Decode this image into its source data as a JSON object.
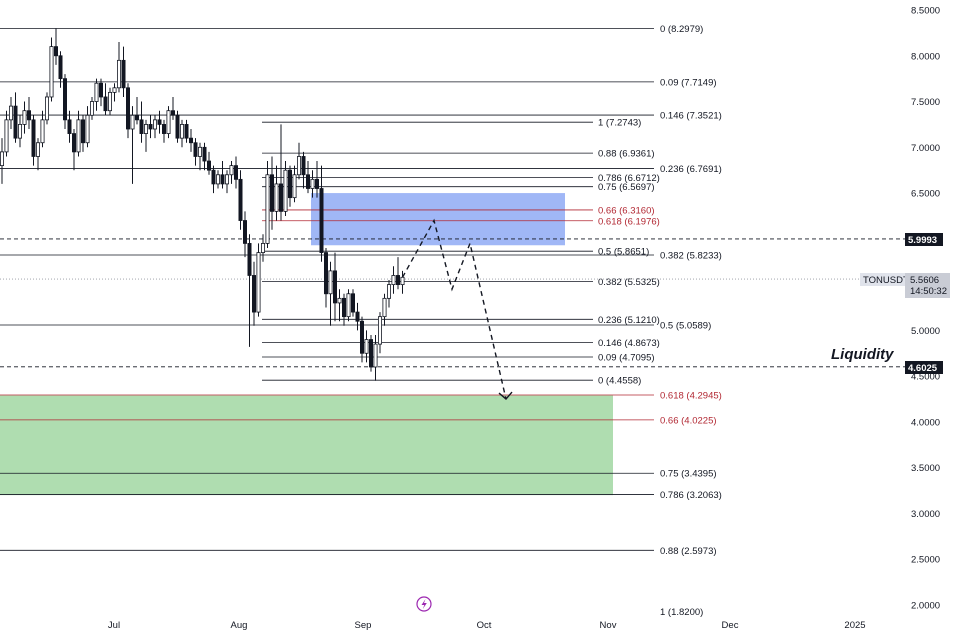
{
  "symbol_tag": {
    "label": "TONUSDT",
    "price": "5.5606",
    "countdown": "14:50:32"
  },
  "level_tags": {
    "top": "5.9993",
    "liquidity": "4.6025"
  },
  "liquidity_text": "Liquidity",
  "colors": {
    "up": "#26a69a",
    "down": "#131722",
    "candle": "#131722",
    "supply_zone": "#8faaf5",
    "demand_zone": "#a6d9a7",
    "fib_red": "#b22833",
    "tag_bg": "#131722"
  },
  "icons": {
    "bottom_center": "lightning-icon"
  },
  "chart_data": {
    "type": "candlestick",
    "y_axis": {
      "range": [
        2.0,
        8.5
      ],
      "ticks": [
        "8.5000",
        "8.0000",
        "7.5000",
        "7.0000",
        "6.5000",
        "6.0000",
        "5.5000",
        "5.0000",
        "4.5000",
        "4.0000",
        "3.5000",
        "3.0000",
        "2.5000",
        "2.0000"
      ]
    },
    "x_axis": {
      "ticks": [
        "Jul",
        "Aug",
        "Sep",
        "Oct",
        "Nov",
        "Dec",
        "2025"
      ]
    },
    "fib_left": [
      {
        "label": "0 (8.2979)",
        "price": 8.2979
      },
      {
        "label": "0.09 (7.7149)",
        "price": 7.7149
      },
      {
        "label": "0.146 (7.3521)",
        "price": 7.3521
      },
      {
        "label": "0.236 (6.7691)",
        "price": 6.7691
      },
      {
        "label": "0.382 (5.8233)",
        "price": 5.8233
      },
      {
        "label": "0.5 (5.0589)",
        "price": 5.0589
      },
      {
        "label": "0.618 (4.2945)",
        "price": 4.2945,
        "red": true
      },
      {
        "label": "0.66 (4.0225)",
        "price": 4.0225,
        "red": true
      },
      {
        "label": "0.75 (3.4395)",
        "price": 3.4395
      },
      {
        "label": "0.786 (3.2063)",
        "price": 3.2063
      },
      {
        "label": "0.88 (2.5973)",
        "price": 2.5973
      },
      {
        "label": "1 (1.8200)",
        "price": 1.82
      }
    ],
    "fib_right": [
      {
        "label": "1 (7.2743)",
        "price": 7.2743
      },
      {
        "label": "0.88 (6.9361)",
        "price": 6.9361
      },
      {
        "label": "0.786 (6.6712)",
        "price": 6.6712
      },
      {
        "label": "0.75 (6.5697)",
        "price": 6.5697
      },
      {
        "label": "0.66 (6.3160)",
        "price": 6.316,
        "red": true
      },
      {
        "label": "0.618 (6.1976)",
        "price": 6.1976,
        "red": true
      },
      {
        "label": "0.5 (5.8651)",
        "price": 5.8651
      },
      {
        "label": "0.382 (5.5325)",
        "price": 5.5325
      },
      {
        "label": "0.236 (5.1210)",
        "price": 5.121
      },
      {
        "label": "0.146 (4.8673)",
        "price": 4.8673
      },
      {
        "label": "0.09 (4.7095)",
        "price": 4.7095
      },
      {
        "label": "0 (4.4558)",
        "price": 4.4558
      }
    ],
    "zones": [
      {
        "name": "supply",
        "top": 6.5,
        "bottom": 5.93
      },
      {
        "name": "demand",
        "top": 4.29,
        "bottom": 3.2
      }
    ],
    "horizontal_levels": [
      {
        "price": 5.9993,
        "style": "dashed"
      },
      {
        "price": 4.6025,
        "style": "dashed"
      },
      {
        "price": 5.5606,
        "style": "dotted"
      }
    ],
    "candles": [
      [
        6.8,
        7.1,
        6.6,
        6.95
      ],
      [
        6.95,
        7.4,
        6.9,
        7.3
      ],
      [
        7.3,
        7.55,
        7.2,
        7.45
      ],
      [
        7.45,
        7.6,
        7.05,
        7.1
      ],
      [
        7.1,
        7.35,
        7.0,
        7.25
      ],
      [
        7.25,
        7.5,
        7.15,
        7.4
      ],
      [
        7.4,
        7.55,
        7.2,
        7.3
      ],
      [
        7.3,
        7.35,
        6.8,
        6.9
      ],
      [
        6.9,
        7.1,
        6.75,
        7.05
      ],
      [
        7.05,
        7.4,
        7.0,
        7.3
      ],
      [
        7.3,
        7.6,
        7.25,
        7.55
      ],
      [
        7.55,
        8.2,
        7.5,
        8.1
      ],
      [
        8.1,
        8.3,
        7.9,
        8.0
      ],
      [
        8.0,
        8.05,
        7.65,
        7.75
      ],
      [
        7.75,
        7.8,
        7.2,
        7.3
      ],
      [
        7.3,
        7.4,
        7.05,
        7.15
      ],
      [
        7.15,
        7.2,
        6.75,
        6.95
      ],
      [
        6.95,
        7.4,
        6.9,
        7.3
      ],
      [
        7.3,
        7.35,
        6.95,
        7.05
      ],
      [
        7.05,
        7.45,
        7.0,
        7.35
      ],
      [
        7.35,
        7.55,
        7.3,
        7.5
      ],
      [
        7.5,
        7.75,
        7.4,
        7.7
      ],
      [
        7.7,
        7.75,
        7.45,
        7.55
      ],
      [
        7.55,
        7.7,
        7.35,
        7.4
      ],
      [
        7.4,
        7.65,
        7.35,
        7.6
      ],
      [
        7.6,
        7.7,
        7.5,
        7.65
      ],
      [
        7.65,
        8.15,
        7.6,
        7.95
      ],
      [
        7.95,
        8.1,
        7.55,
        7.65
      ],
      [
        7.65,
        7.7,
        7.1,
        7.2
      ],
      [
        7.2,
        7.45,
        6.6,
        7.35
      ],
      [
        7.35,
        7.55,
        7.25,
        7.3
      ],
      [
        7.3,
        7.5,
        7.05,
        7.15
      ],
      [
        7.15,
        7.3,
        6.95,
        7.25
      ],
      [
        7.25,
        7.35,
        7.1,
        7.2
      ],
      [
        7.2,
        7.35,
        7.1,
        7.3
      ],
      [
        7.3,
        7.4,
        7.15,
        7.25
      ],
      [
        7.25,
        7.3,
        7.05,
        7.15
      ],
      [
        7.15,
        7.45,
        7.1,
        7.4
      ],
      [
        7.4,
        7.55,
        7.3,
        7.35
      ],
      [
        7.35,
        7.4,
        7.05,
        7.1
      ],
      [
        7.1,
        7.3,
        7.0,
        7.25
      ],
      [
        7.25,
        7.3,
        7.05,
        7.1
      ],
      [
        7.1,
        7.2,
        6.95,
        7.05
      ],
      [
        7.05,
        7.1,
        6.8,
        6.9
      ],
      [
        6.9,
        7.05,
        6.75,
        7.0
      ],
      [
        7.0,
        7.05,
        6.75,
        6.85
      ],
      [
        6.85,
        6.95,
        6.7,
        6.75
      ],
      [
        6.75,
        6.8,
        6.5,
        6.6
      ],
      [
        6.6,
        6.75,
        6.55,
        6.7
      ],
      [
        6.7,
        6.85,
        6.55,
        6.6
      ],
      [
        6.6,
        6.75,
        6.5,
        6.7
      ],
      [
        6.7,
        6.85,
        6.6,
        6.8
      ],
      [
        6.8,
        6.9,
        6.55,
        6.65
      ],
      [
        6.65,
        6.75,
        6.1,
        6.2
      ],
      [
        6.2,
        6.3,
        5.8,
        5.95
      ],
      [
        5.95,
        6.05,
        4.82,
        5.6
      ],
      [
        5.6,
        5.75,
        5.05,
        5.2
      ],
      [
        5.2,
        5.95,
        5.15,
        5.85
      ],
      [
        5.85,
        6.05,
        5.75,
        5.95
      ],
      [
        5.95,
        6.85,
        5.9,
        6.7
      ],
      [
        6.7,
        6.9,
        6.1,
        6.3
      ],
      [
        6.3,
        6.8,
        6.2,
        6.6
      ],
      [
        6.6,
        7.25,
        6.2,
        6.3
      ],
      [
        6.3,
        6.85,
        6.25,
        6.75
      ],
      [
        6.75,
        6.8,
        6.35,
        6.45
      ],
      [
        6.45,
        6.8,
        6.4,
        6.7
      ],
      [
        6.7,
        7.05,
        6.65,
        6.9
      ],
      [
        6.9,
        6.95,
        6.55,
        6.7
      ],
      [
        6.7,
        6.85,
        6.5,
        6.55
      ],
      [
        6.55,
        6.75,
        6.45,
        6.65
      ],
      [
        6.65,
        6.85,
        6.45,
        6.55
      ],
      [
        6.55,
        6.8,
        5.75,
        5.85
      ],
      [
        5.85,
        5.9,
        5.25,
        5.4
      ],
      [
        5.4,
        5.75,
        5.05,
        5.65
      ],
      [
        5.65,
        5.85,
        5.1,
        5.3
      ],
      [
        5.3,
        5.45,
        5.1,
        5.35
      ],
      [
        5.35,
        5.4,
        5.05,
        5.15
      ],
      [
        5.15,
        5.45,
        5.1,
        5.4
      ],
      [
        5.4,
        5.45,
        5.15,
        5.2
      ],
      [
        5.2,
        5.3,
        5.0,
        5.1
      ],
      [
        5.1,
        5.15,
        4.65,
        4.75
      ],
      [
        4.75,
        5.0,
        4.65,
        4.9
      ],
      [
        4.9,
        4.95,
        4.55,
        4.6
      ],
      [
        4.6,
        4.95,
        4.45,
        4.85
      ],
      [
        4.85,
        5.2,
        4.75,
        5.15
      ],
      [
        5.15,
        5.4,
        5.05,
        5.35
      ],
      [
        5.35,
        5.55,
        5.25,
        5.5
      ],
      [
        5.5,
        5.7,
        5.4,
        5.6
      ],
      [
        5.6,
        5.8,
        5.45,
        5.5
      ],
      [
        5.5,
        5.65,
        5.4,
        5.58
      ]
    ],
    "projection": [
      {
        "date_index": 89,
        "price": 5.58
      },
      {
        "date_index": 96,
        "price": 6.2
      },
      {
        "date_index": 100,
        "price": 5.45
      },
      {
        "date_index": 104,
        "price": 5.95
      },
      {
        "date_index": 112,
        "price": 4.25
      }
    ]
  }
}
